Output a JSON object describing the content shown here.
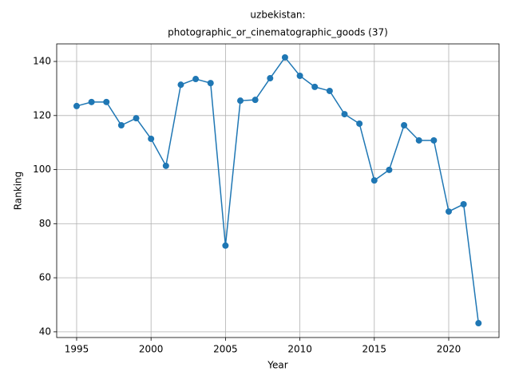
{
  "chart_data": {
    "type": "line",
    "title": [
      "uzbekistan:",
      "photographic_or_cinematographic_goods (37)"
    ],
    "x_label": "Year",
    "y_label": "Ranking",
    "x": [
      1995,
      1996,
      1997,
      1998,
      1999,
      2000,
      2001,
      2002,
      2003,
      2004,
      2005,
      2006,
      2007,
      2008,
      2009,
      2010,
      2011,
      2012,
      2013,
      2014,
      2015,
      2016,
      2017,
      2018,
      2019,
      2020,
      2021,
      2022
    ],
    "series": [
      {
        "color": "#1f77b4",
        "values": [
          123.5,
          125,
          125,
          116.4,
          119,
          111.4,
          101.4,
          131.4,
          133.5,
          132,
          71.9,
          125.5,
          125.8,
          133.8,
          141.5,
          134.7,
          130.6,
          129.1,
          120.5,
          117,
          96,
          99.9,
          116.4,
          110.8,
          110.8,
          84.5,
          87.2,
          43.2
        ]
      }
    ],
    "xlim": [
      1993.66,
      2023.38
    ],
    "xticks": [
      1995,
      2000,
      2005,
      2010,
      2015,
      2020
    ],
    "ylim": [
      37.9,
      146.5
    ],
    "yticks": [
      40,
      60,
      80,
      100,
      120,
      140
    ],
    "grid": true
  }
}
